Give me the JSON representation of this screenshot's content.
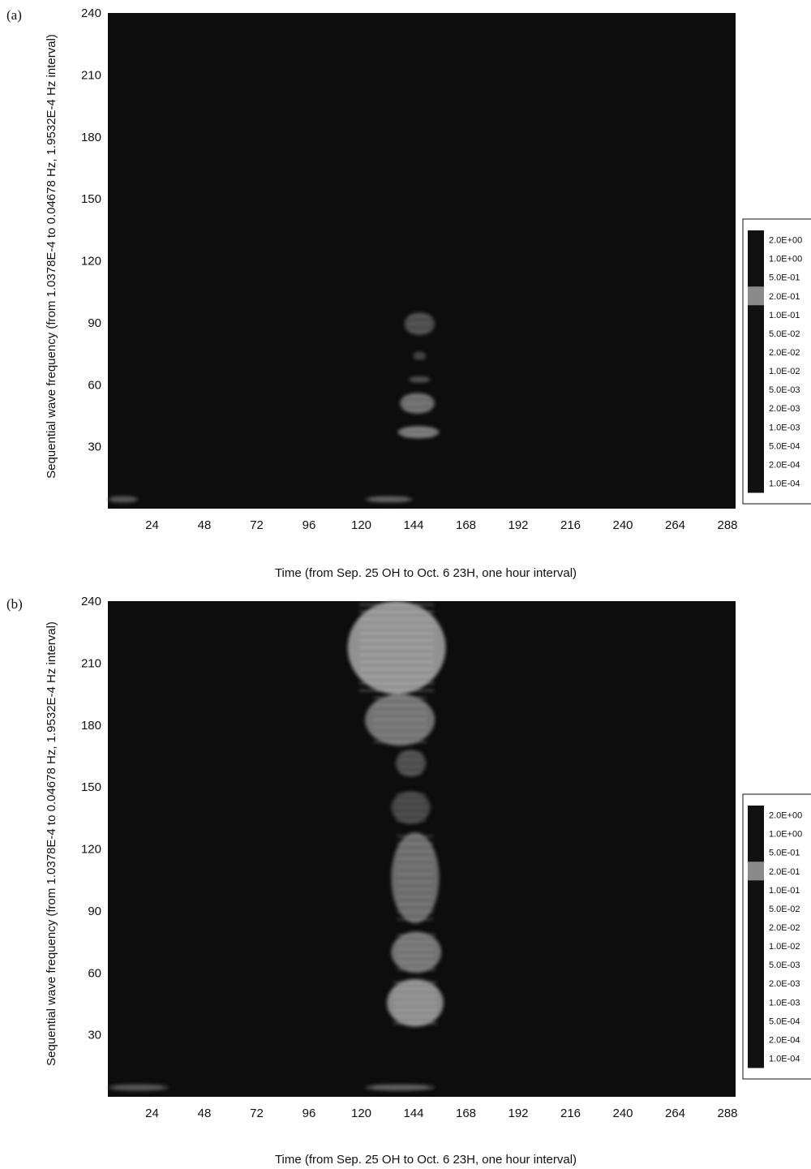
{
  "figure": {
    "panels": [
      "(a)",
      "(b)"
    ]
  },
  "chart_data": [
    {
      "panel": "(a)",
      "type": "heatmap",
      "xlabel": "Time (from Sep. 25 OH to Oct. 6 23H, one hour interval)",
      "ylabel": "Sequential wave frequency (from 1.0378E-4 to 0.04678 Hz, 1.9532E-4 Hz interval)",
      "xlim": [
        0,
        288
      ],
      "ylim": [
        0,
        240
      ],
      "x_ticks": [
        24,
        48,
        72,
        96,
        120,
        144,
        168,
        192,
        216,
        240,
        264,
        288
      ],
      "y_ticks": [
        30,
        60,
        90,
        120,
        150,
        180,
        210,
        240
      ],
      "legend": {
        "position": "right",
        "levels": [
          "2.0E+00",
          "1.0E+00",
          "5.0E-01",
          "2.0E-01",
          "1.0E-01",
          "5.0E-02",
          "2.0E-02",
          "1.0E-02",
          "5.0E-03",
          "2.0E-03",
          "1.0E-03",
          "5.0E-04",
          "2.0E-04",
          "1.0E-04"
        ]
      },
      "colors": {
        "background": "#0d0d0d",
        "weak": "#3a3a3a",
        "medium": "#7a7a7a",
        "strong": "#bdbdbd"
      },
      "energy_regions": [
        {
          "x": [
            133,
            152
          ],
          "y": [
            34,
            40
          ],
          "level": 0.55
        },
        {
          "x": [
            134,
            150
          ],
          "y": [
            46,
            56
          ],
          "level": 0.5
        },
        {
          "x": [
            138,
            148
          ],
          "y": [
            61,
            64
          ],
          "level": 0.25
        },
        {
          "x": [
            140,
            146
          ],
          "y": [
            72,
            76
          ],
          "level": 0.2
        },
        {
          "x": [
            136,
            150
          ],
          "y": [
            84,
            95
          ],
          "level": 0.3
        },
        {
          "x": [
            0,
            14
          ],
          "y": [
            3,
            6
          ],
          "level": 0.3
        },
        {
          "x": [
            118,
            140
          ],
          "y": [
            3,
            6
          ],
          "level": 0.35
        }
      ]
    },
    {
      "panel": "(b)",
      "type": "heatmap",
      "xlabel": "Time (from Sep. 25 OH to Oct. 6 23H, one hour interval)",
      "ylabel": "Sequential wave frequency (from 1.0378E-4 to 0.04678 Hz, 1.9532E-4 Hz interval)",
      "xlim": [
        0,
        288
      ],
      "ylim": [
        0,
        240
      ],
      "x_ticks": [
        24,
        48,
        72,
        96,
        120,
        144,
        168,
        192,
        216,
        240,
        264,
        288
      ],
      "y_ticks": [
        30,
        60,
        90,
        120,
        150,
        180,
        210,
        240
      ],
      "legend": {
        "position": "right",
        "levels": [
          "2.0E+00",
          "1.0E+00",
          "5.0E-01",
          "2.0E-01",
          "1.0E-01",
          "5.0E-02",
          "2.0E-02",
          "1.0E-02",
          "5.0E-03",
          "2.0E-03",
          "1.0E-03",
          "5.0E-04",
          "2.0E-04",
          "1.0E-04"
        ]
      },
      "colors": {
        "background": "#0d0d0d",
        "weak": "#3a3a3a",
        "medium": "#7a7a7a",
        "strong": "#bdbdbd"
      },
      "energy_regions": [
        {
          "x": [
            110,
            155
          ],
          "y": [
            195,
            240
          ],
          "level": 0.75
        },
        {
          "x": [
            118,
            150
          ],
          "y": [
            170,
            195
          ],
          "level": 0.55
        },
        {
          "x": [
            132,
            146
          ],
          "y": [
            155,
            168
          ],
          "level": 0.3
        },
        {
          "x": [
            130,
            148
          ],
          "y": [
            132,
            148
          ],
          "level": 0.25
        },
        {
          "x": [
            130,
            152
          ],
          "y": [
            84,
            128
          ],
          "level": 0.5
        },
        {
          "x": [
            130,
            153
          ],
          "y": [
            60,
            80
          ],
          "level": 0.55
        },
        {
          "x": [
            128,
            154
          ],
          "y": [
            34,
            57
          ],
          "level": 0.7
        },
        {
          "x": [
            0,
            28
          ],
          "y": [
            3,
            6
          ],
          "level": 0.3
        },
        {
          "x": [
            118,
            150
          ],
          "y": [
            3,
            6
          ],
          "level": 0.35
        }
      ]
    }
  ]
}
